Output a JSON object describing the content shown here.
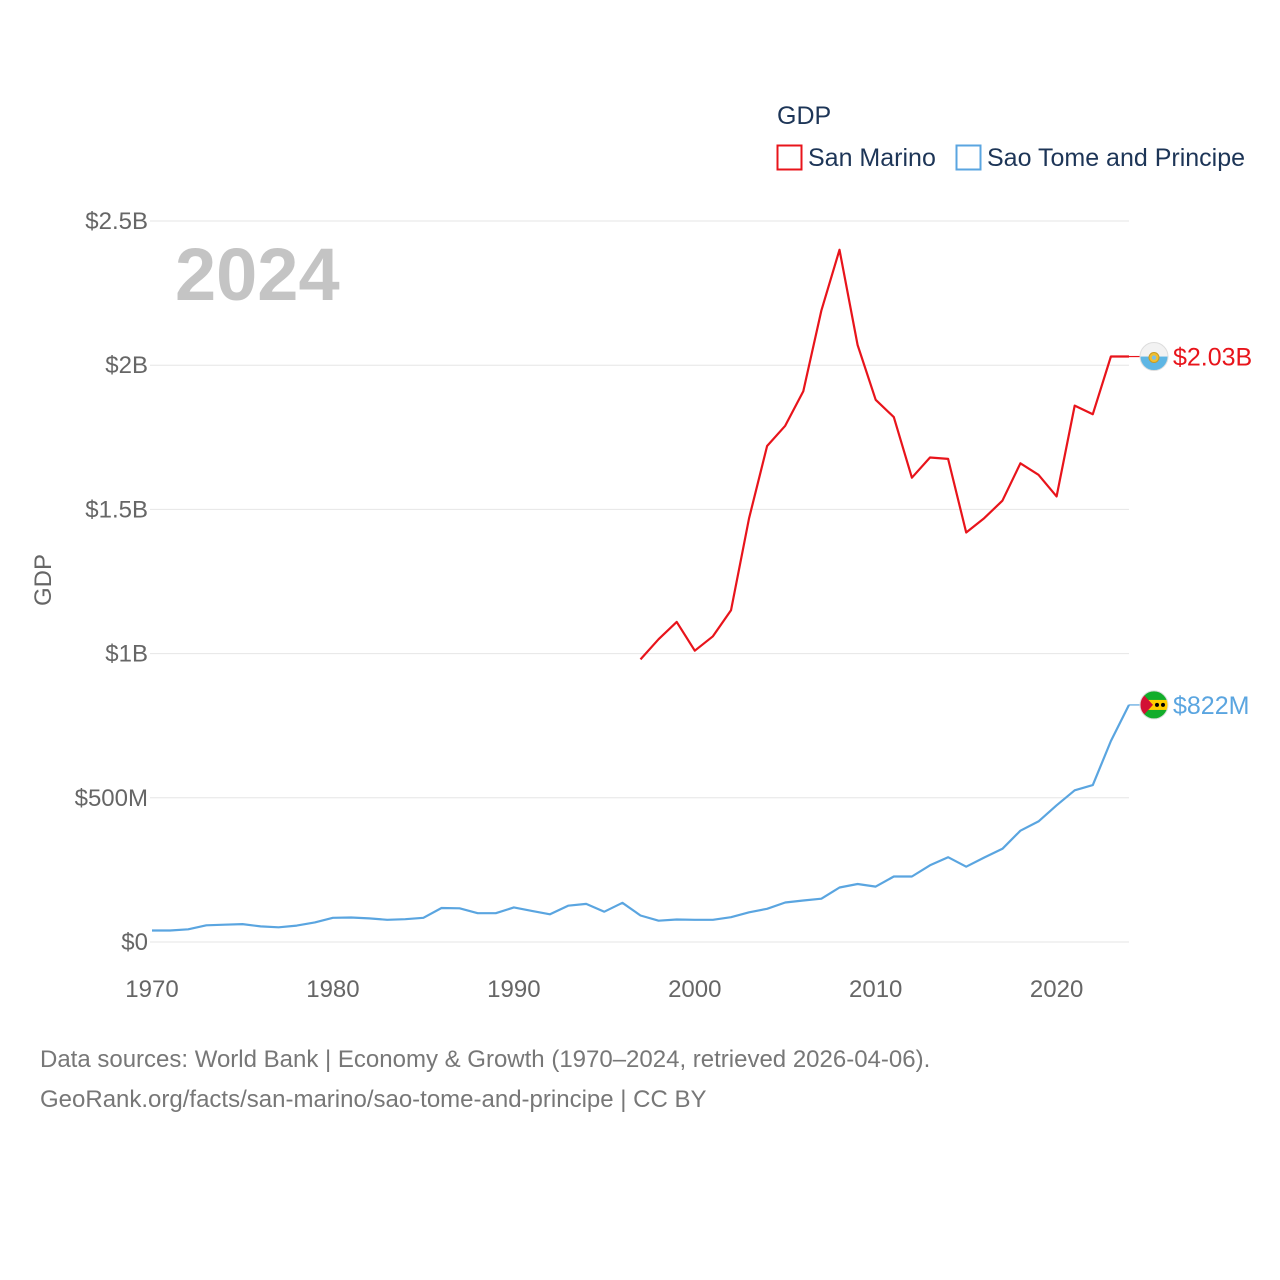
{
  "chart_data": {
    "type": "line",
    "year_watermark": "2024",
    "ylabel": "GDP",
    "ylim": [
      0,
      2500000000
    ],
    "xlim": [
      1970,
      2024
    ],
    "y_ticks": [
      0,
      500000000,
      1000000000,
      1500000000,
      2000000000,
      2500000000
    ],
    "y_tick_labels": [
      "$0",
      "$500M",
      "$1B",
      "$1.5B",
      "$2B",
      "$2.5B"
    ],
    "x_ticks": [
      1970,
      1980,
      1990,
      2000,
      2010,
      2020
    ],
    "x_tick_labels": [
      "1970",
      "1980",
      "1990",
      "2000",
      "2010",
      "2020"
    ],
    "legend": {
      "title": "GDP",
      "position": "top-right"
    },
    "series": [
      {
        "name": "San Marino",
        "color": "#e8141b",
        "end_label": "$2.03B",
        "flag_icon": "san-marino-flag-icon",
        "x": [
          1997,
          1998,
          1999,
          2000,
          2001,
          2002,
          2003,
          2004,
          2005,
          2006,
          2007,
          2008,
          2009,
          2010,
          2011,
          2012,
          2013,
          2014,
          2015,
          2016,
          2017,
          2018,
          2019,
          2020,
          2021,
          2022,
          2023,
          2024
        ],
        "values": [
          980000000,
          1050000000,
          1110000000,
          1010000000,
          1060000000,
          1150000000,
          1470000000,
          1720000000,
          1790000000,
          1910000000,
          2190000000,
          2400000000,
          2070000000,
          1880000000,
          1820000000,
          1610000000,
          1680000000,
          1675000000,
          1420000000,
          1470000000,
          1530000000,
          1660000000,
          1620000000,
          1545000000,
          1860000000,
          1830000000,
          2030000000,
          2030000000
        ]
      },
      {
        "name": "Sao Tome and Principe",
        "color": "#5aa5e0",
        "end_label": "$822M",
        "flag_icon": "sao-tome-and-principe-flag-icon",
        "x": [
          1970,
          1971,
          1972,
          1973,
          1974,
          1975,
          1976,
          1977,
          1978,
          1979,
          1980,
          1981,
          1982,
          1983,
          1984,
          1985,
          1986,
          1987,
          1988,
          1989,
          1990,
          1991,
          1992,
          1993,
          1994,
          1995,
          1996,
          1997,
          1998,
          1999,
          2000,
          2001,
          2002,
          2003,
          2004,
          2005,
          2006,
          2007,
          2008,
          2009,
          2010,
          2011,
          2012,
          2013,
          2014,
          2015,
          2016,
          2017,
          2018,
          2019,
          2020,
          2021,
          2022,
          2023,
          2024
        ],
        "values": [
          40000000,
          40000000,
          44000000,
          58000000,
          60000000,
          62000000,
          54000000,
          51000000,
          57000000,
          68000000,
          84000000,
          85000000,
          82000000,
          77000000,
          79000000,
          84000000,
          118000000,
          117000000,
          100000000,
          100000000,
          120000000,
          108000000,
          96000000,
          126000000,
          132000000,
          105000000,
          136000000,
          92000000,
          74000000,
          78000000,
          77000000,
          77000000,
          86000000,
          103000000,
          115000000,
          137000000,
          144000000,
          150000000,
          189000000,
          201000000,
          192000000,
          227000000,
          227000000,
          266000000,
          294000000,
          261000000,
          293000000,
          323000000,
          386000000,
          418000000,
          474000000,
          526000000,
          544000000,
          697000000,
          822000000
        ]
      }
    ]
  },
  "source": {
    "line1": "Data sources: World Bank | Economy & Growth (1970–2024, retrieved 2026-04-06).",
    "line2": "GeoRank.org/facts/san-marino/sao-tome-and-principe | CC BY"
  }
}
